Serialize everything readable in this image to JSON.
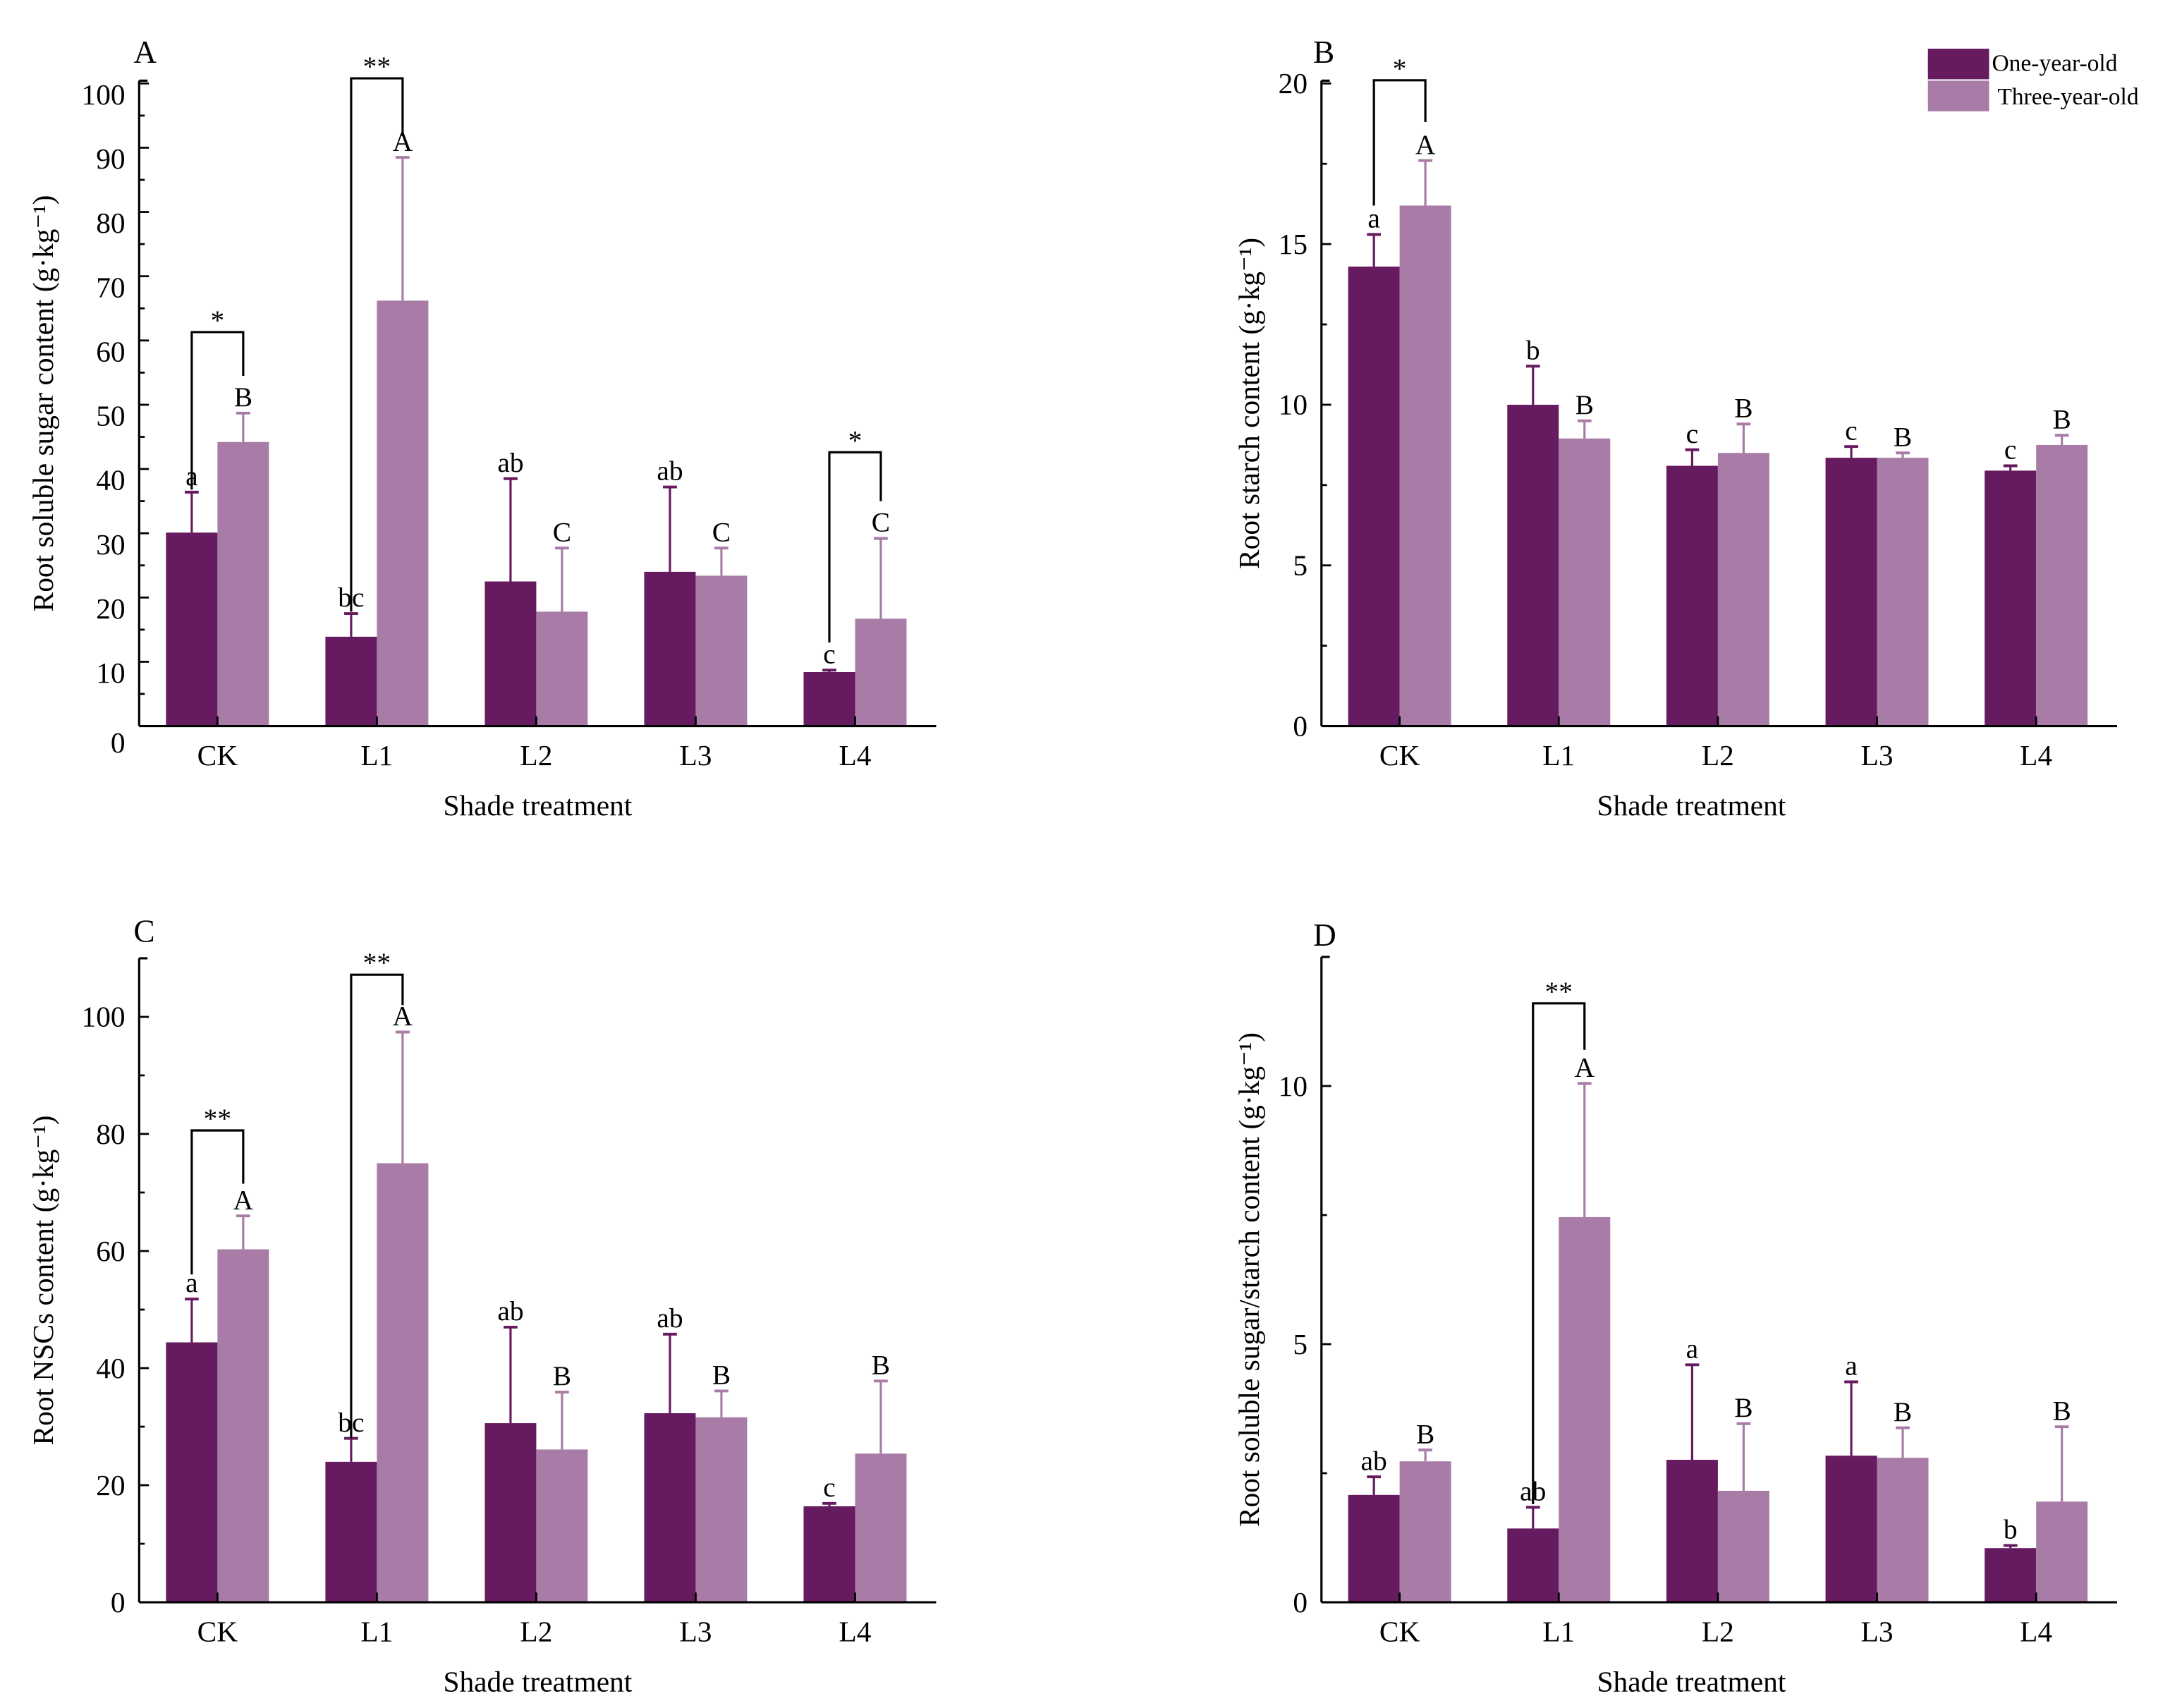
{
  "colors": {
    "one_year": "#661a5f",
    "three_year": "#a87ca6",
    "axis": "#000000"
  },
  "legend": {
    "position": "top-right",
    "items": [
      {
        "label": "One-year-old",
        "color": "#661a5f"
      },
      {
        "label": "Three-year-old",
        "color": "#a87ca6"
      }
    ]
  },
  "chart_data": [
    {
      "panel": "A",
      "type": "bar",
      "categories": [
        "CK",
        "L1",
        "L2",
        "L3",
        "L4"
      ],
      "xlabel": "Shade treatment",
      "ylabel": "Root soluble sugar content (g·kg⁻¹)",
      "ylim": [
        0,
        100
      ],
      "yticks": [
        0,
        10,
        20,
        30,
        40,
        50,
        60,
        70,
        80,
        90,
        100
      ],
      "minor_step": 5,
      "series": [
        {
          "name": "One-year-old",
          "values": [
            30.1,
            13.9,
            22.5,
            24.0,
            8.4
          ],
          "error_top": [
            36.4,
            17.5,
            38.5,
            37.2,
            8.7
          ],
          "letters": [
            "a",
            "bc",
            "ab",
            "ab",
            "c"
          ]
        },
        {
          "name": "Three-year-old",
          "values": [
            44.2,
            66.2,
            17.8,
            23.4,
            16.7
          ],
          "error_top": [
            48.7,
            88.5,
            27.7,
            27.7,
            29.2
          ],
          "letters": [
            "B",
            "A",
            "C",
            "C",
            "C"
          ]
        }
      ],
      "brackets": [
        {
          "category": "CK",
          "mark": "*",
          "top": 61.3,
          "left_end": 36.8,
          "right_end": 54.5
        },
        {
          "category": "L1",
          "mark": "**",
          "top": 100.8,
          "left_end": 17.8,
          "right_end": 91.8
        },
        {
          "category": "L4",
          "mark": "*",
          "top": 42.6,
          "left_end": 13.0,
          "right_end": 35.0
        }
      ]
    },
    {
      "panel": "B",
      "type": "bar",
      "categories": [
        "CK",
        "L1",
        "L2",
        "L3",
        "L4"
      ],
      "xlabel": "Shade treatment",
      "ylabel": "Root starch content (g·kg⁻¹)",
      "ylim": [
        0,
        20
      ],
      "yticks": [
        0,
        5,
        10,
        15,
        20
      ],
      "minor_step": 2.5,
      "series": [
        {
          "name": "One-year-old",
          "values": [
            14.3,
            10.0,
            8.1,
            8.35,
            7.95
          ],
          "error_top": [
            15.3,
            11.2,
            8.6,
            8.7,
            8.1
          ],
          "letters": [
            "a",
            "b",
            "c",
            "c",
            "c"
          ]
        },
        {
          "name": "Three-year-old",
          "values": [
            16.2,
            8.95,
            8.5,
            8.35,
            8.75
          ],
          "error_top": [
            17.6,
            9.5,
            9.4,
            8.5,
            9.05
          ],
          "letters": [
            "A",
            "B",
            "B",
            "B",
            "B"
          ]
        }
      ],
      "brackets": [
        {
          "category": "CK",
          "mark": "*",
          "top": 20.1,
          "left_end": 16.2,
          "right_end": 18.8
        }
      ]
    },
    {
      "panel": "C",
      "type": "bar",
      "categories": [
        "CK",
        "L1",
        "L2",
        "L3",
        "L4"
      ],
      "xlabel": "Shade treatment",
      "ylabel": "Root NSCs content (g·kg⁻¹)",
      "ylim": [
        0,
        110
      ],
      "yticks": [
        0,
        20,
        40,
        60,
        80,
        100
      ],
      "minor_step": 10,
      "series": [
        {
          "name": "One-year-old",
          "values": [
            44.4,
            24.0,
            30.6,
            32.3,
            16.4
          ],
          "error_top": [
            51.8,
            28.0,
            47.0,
            45.8,
            16.9
          ],
          "letters": [
            "a",
            "bc",
            "ab",
            "ab",
            "c"
          ]
        },
        {
          "name": "Three-year-old",
          "values": [
            60.3,
            75.0,
            26.1,
            31.6,
            25.4
          ],
          "error_top": [
            66.0,
            97.4,
            35.9,
            36.1,
            37.8
          ],
          "letters": [
            "A",
            "A",
            "B",
            "B",
            "B"
          ]
        }
      ],
      "brackets": [
        {
          "category": "CK",
          "mark": "**",
          "top": 80.6,
          "left_end": 56.0,
          "right_end": 71.5
        },
        {
          "category": "L1",
          "mark": "**",
          "top": 107.2,
          "left_end": 28.0,
          "right_end": 102.0
        }
      ]
    },
    {
      "panel": "D",
      "type": "bar",
      "categories": [
        "CK",
        "L1",
        "L2",
        "L3",
        "L4"
      ],
      "xlabel": "Shade treatment",
      "ylabel": "Root soluble sugar/starch content (g·kg⁻¹)",
      "ylim": [
        0,
        12.5
      ],
      "yticks": [
        0,
        5,
        10
      ],
      "minor_step": 2.5,
      "series": [
        {
          "name": "One-year-old",
          "values": [
            2.08,
            1.43,
            2.76,
            2.84,
            1.05
          ],
          "error_top": [
            2.43,
            1.84,
            4.6,
            4.27,
            1.1
          ],
          "letters": [
            "ab",
            "ab",
            "a",
            "a",
            "b"
          ]
        },
        {
          "name": "Three-year-old",
          "values": [
            2.73,
            7.46,
            2.16,
            2.8,
            1.95
          ],
          "error_top": [
            2.95,
            10.05,
            3.46,
            3.38,
            3.4
          ],
          "letters": [
            "B",
            "A",
            "B",
            "B",
            "B"
          ]
        }
      ],
      "brackets": [
        {
          "category": "L1",
          "mark": "**",
          "top": 11.6,
          "left_end": 1.9,
          "right_end": 10.7
        }
      ]
    }
  ]
}
